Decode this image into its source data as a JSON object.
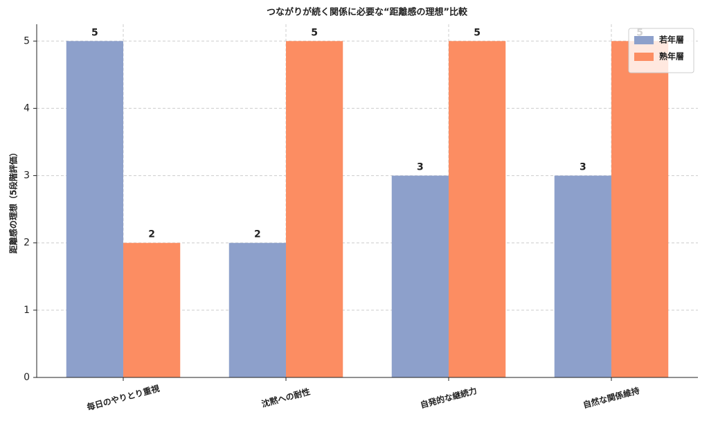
{
  "chart_data": {
    "type": "bar",
    "title": "つながりが続く関係に必要な“距離感の理想”比較",
    "ylabel": "距離感の理想（5段階評価）",
    "categories": [
      "毎日のやりとり重視",
      "沈黙への耐性",
      "自発的な継続力",
      "自然な関係維持"
    ],
    "series": [
      {
        "name": "若年層",
        "color": "#8da0cb",
        "values": [
          5,
          2,
          3,
          3
        ]
      },
      {
        "name": "熟年層",
        "color": "#fc8d62",
        "values": [
          2,
          5,
          5,
          5
        ]
      }
    ],
    "ylim": [
      0,
      5.25
    ],
    "yticks": [
      0,
      1,
      2,
      3,
      4,
      5
    ],
    "grid": true,
    "legend": "upper right"
  }
}
